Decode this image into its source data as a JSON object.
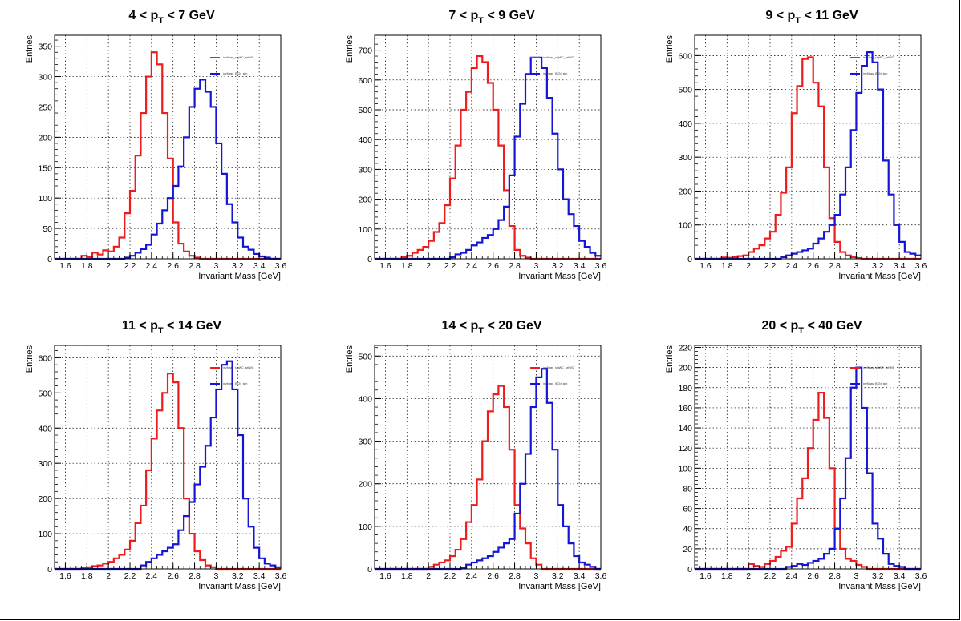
{
  "page": {
    "background": "#ffffff"
  },
  "colors": {
    "series_red": "#ee1c1c",
    "series_blue": "#1515d6",
    "grid": "#000000",
    "axis": "#000000"
  },
  "chart_data": [
    {
      "type": "histogram",
      "title_parts": {
        "left": "4 < p",
        "sub": "T",
        "right": " < 7 GeV"
      },
      "xlabel": "Invariant Mass [GeV]",
      "ylabel": "Entries",
      "xlim": [
        1.5,
        3.6
      ],
      "ylim": [
        0,
        368
      ],
      "xticks": [
        1.6,
        1.8,
        2,
        2.2,
        2.4,
        2.6,
        2.8,
        3,
        3.2,
        3.4,
        3.6
      ],
      "xtick_labels": [
        "1.6",
        "1.8",
        "2",
        "2.2",
        "2.4",
        "2.6",
        "2.8",
        "3",
        "3.2",
        "3.4",
        "3.6"
      ],
      "yticks": [
        0,
        50,
        100,
        150,
        200,
        250,
        300,
        350
      ],
      "ytick_labels": [
        "0",
        "50",
        "100",
        "150",
        "200",
        "250",
        "300",
        "350"
      ],
      "grid": true,
      "legend_position": "top-right",
      "series": [
        {
          "name": "invMass_sigWC_selWC",
          "color": "#ee1c1c",
          "values": [
            0,
            0,
            0,
            0,
            0,
            5,
            3,
            10,
            7,
            14,
            12,
            20,
            35,
            75,
            112,
            170,
            240,
            300,
            340,
            320,
            240,
            165,
            60,
            25,
            12,
            5,
            2,
            0,
            0,
            0,
            0,
            0,
            0,
            0,
            0,
            0,
            0,
            0,
            0,
            0,
            0,
            0
          ]
        },
        {
          "name": "invMass_BCN_sim",
          "color": "#1515d6",
          "values": [
            0,
            0,
            0,
            0,
            0,
            0,
            0,
            0,
            0,
            0,
            0,
            0,
            0,
            2,
            5,
            10,
            16,
            23,
            40,
            58,
            80,
            100,
            120,
            152,
            200,
            250,
            280,
            295,
            275,
            250,
            190,
            140,
            90,
            60,
            35,
            20,
            15,
            8,
            4,
            2,
            0,
            0
          ]
        }
      ]
    },
    {
      "type": "histogram",
      "title_parts": {
        "left": "7 < p",
        "sub": "T",
        "right": " < 9 GeV"
      },
      "xlabel": "Invariant Mass [GeV]",
      "ylabel": "Entries",
      "xlim": [
        1.5,
        3.6
      ],
      "ylim": [
        0,
        750
      ],
      "xticks": [
        1.6,
        1.8,
        2,
        2.2,
        2.4,
        2.6,
        2.8,
        3,
        3.2,
        3.4,
        3.6
      ],
      "xtick_labels": [
        "1.6",
        "1.8",
        "2",
        "2.2",
        "2.4",
        "2.6",
        "2.8",
        "3",
        "3.2",
        "3.4",
        "3.6"
      ],
      "yticks": [
        0,
        100,
        200,
        300,
        400,
        500,
        600,
        700
      ],
      "ytick_labels": [
        "0",
        "100",
        "200",
        "300",
        "400",
        "500",
        "600",
        "700"
      ],
      "grid": true,
      "legend_position": "top-right",
      "series": [
        {
          "name": "invMass_sigWC_selWC",
          "color": "#ee1c1c",
          "values": [
            0,
            0,
            0,
            0,
            0,
            5,
            10,
            20,
            30,
            40,
            60,
            90,
            120,
            180,
            270,
            380,
            500,
            560,
            640,
            680,
            660,
            590,
            500,
            380,
            230,
            110,
            30,
            10,
            4,
            0,
            0,
            0,
            0,
            0,
            0,
            0,
            0,
            0,
            0,
            0,
            0,
            0
          ]
        },
        {
          "name": "invMass_BCN_sim",
          "color": "#1515d6",
          "values": [
            0,
            0,
            0,
            0,
            0,
            0,
            0,
            0,
            0,
            0,
            0,
            0,
            0,
            0,
            5,
            15,
            20,
            30,
            45,
            55,
            70,
            80,
            100,
            130,
            175,
            280,
            410,
            520,
            620,
            675,
            675,
            640,
            540,
            420,
            300,
            200,
            150,
            110,
            60,
            40,
            20,
            10
          ]
        }
      ]
    },
    {
      "type": "histogram",
      "title_parts": {
        "left": "9 < p",
        "sub": "T",
        "right": " < 11 GeV"
      },
      "xlabel": "Invariant Mass [GeV]",
      "ylabel": "Entries",
      "xlim": [
        1.5,
        3.6
      ],
      "ylim": [
        0,
        660
      ],
      "xticks": [
        1.6,
        1.8,
        2,
        2.2,
        2.4,
        2.6,
        2.8,
        3,
        3.2,
        3.4,
        3.6
      ],
      "xtick_labels": [
        "1.6",
        "1.8",
        "2",
        "2.2",
        "2.4",
        "2.6",
        "2.8",
        "3",
        "3.2",
        "3.4",
        "3.6"
      ],
      "yticks": [
        0,
        100,
        200,
        300,
        400,
        500,
        600
      ],
      "ytick_labels": [
        "0",
        "100",
        "200",
        "300",
        "400",
        "500",
        "600"
      ],
      "grid": true,
      "legend_position": "top-right",
      "series": [
        {
          "name": "invMass_sigWC_selWC",
          "color": "#ee1c1c",
          "values": [
            0,
            0,
            0,
            0,
            0,
            4,
            3,
            5,
            8,
            10,
            20,
            30,
            40,
            60,
            80,
            130,
            195,
            270,
            430,
            510,
            590,
            595,
            520,
            450,
            270,
            120,
            50,
            20,
            10,
            5,
            2,
            0,
            0,
            0,
            0,
            0,
            0,
            0,
            0,
            0,
            0,
            0
          ]
        },
        {
          "name": "invMass_BCN_sim",
          "color": "#1515d6",
          "values": [
            0,
            0,
            0,
            0,
            0,
            0,
            0,
            0,
            0,
            0,
            0,
            0,
            0,
            0,
            0,
            0,
            5,
            10,
            15,
            20,
            25,
            30,
            45,
            60,
            80,
            100,
            130,
            190,
            270,
            380,
            490,
            570,
            610,
            580,
            500,
            290,
            190,
            100,
            50,
            20,
            15,
            10
          ]
        }
      ]
    },
    {
      "type": "histogram",
      "title_parts": {
        "left": "11 < p",
        "sub": "T",
        "right": " < 14 GeV"
      },
      "xlabel": "Invariant Mass [GeV]",
      "ylabel": "Entries",
      "xlim": [
        1.5,
        3.6
      ],
      "ylim": [
        0,
        635
      ],
      "xticks": [
        1.6,
        1.8,
        2,
        2.2,
        2.4,
        2.6,
        2.8,
        3,
        3.2,
        3.4,
        3.6
      ],
      "xtick_labels": [
        "1.6",
        "1.8",
        "2",
        "2.2",
        "2.4",
        "2.6",
        "2.8",
        "3",
        "3.2",
        "3.4",
        "3.6"
      ],
      "yticks": [
        0,
        100,
        200,
        300,
        400,
        500,
        600
      ],
      "ytick_labels": [
        "0",
        "100",
        "200",
        "300",
        "400",
        "500",
        "600"
      ],
      "grid": true,
      "legend_position": "top-right",
      "series": [
        {
          "name": "invMass_sigWC_selWC",
          "color": "#ee1c1c",
          "values": [
            0,
            0,
            0,
            0,
            0,
            2,
            5,
            8,
            10,
            15,
            20,
            30,
            40,
            55,
            80,
            130,
            180,
            280,
            370,
            450,
            500,
            555,
            530,
            400,
            200,
            100,
            50,
            25,
            10,
            5,
            0,
            0,
            0,
            0,
            0,
            0,
            0,
            0,
            0,
            0,
            0,
            0
          ]
        },
        {
          "name": "invMass_BCN_sim",
          "color": "#1515d6",
          "values": [
            0,
            0,
            0,
            0,
            0,
            0,
            0,
            0,
            0,
            0,
            0,
            0,
            0,
            0,
            0,
            0,
            10,
            20,
            30,
            40,
            50,
            60,
            70,
            110,
            150,
            190,
            240,
            290,
            350,
            430,
            510,
            580,
            590,
            510,
            380,
            200,
            120,
            60,
            30,
            15,
            10,
            5
          ]
        }
      ]
    },
    {
      "type": "histogram",
      "title_parts": {
        "left": "14 < p",
        "sub": "T",
        "right": " < 20 GeV"
      },
      "xlabel": "Invariant Mass [GeV]",
      "ylabel": "Entries",
      "xlim": [
        1.5,
        3.6
      ],
      "ylim": [
        0,
        525
      ],
      "xticks": [
        1.6,
        1.8,
        2,
        2.2,
        2.4,
        2.6,
        2.8,
        3,
        3.2,
        3.4,
        3.6
      ],
      "xtick_labels": [
        "1.6",
        "1.8",
        "2",
        "2.2",
        "2.4",
        "2.6",
        "2.8",
        "3",
        "3.2",
        "3.4",
        "3.6"
      ],
      "yticks": [
        0,
        100,
        200,
        300,
        400,
        500
      ],
      "ytick_labels": [
        "0",
        "100",
        "200",
        "300",
        "400",
        "500"
      ],
      "grid": true,
      "legend_position": "top-right",
      "series": [
        {
          "name": "invMass_sigWC_selWC",
          "color": "#ee1c1c",
          "values": [
            0,
            0,
            0,
            0,
            0,
            0,
            0,
            0,
            0,
            0,
            5,
            10,
            15,
            20,
            30,
            45,
            70,
            110,
            150,
            210,
            300,
            370,
            410,
            430,
            380,
            280,
            150,
            95,
            60,
            25,
            10,
            0,
            0,
            0,
            0,
            0,
            0,
            0,
            0,
            0,
            0,
            0
          ]
        },
        {
          "name": "invMass_BCN_sim",
          "color": "#1515d6",
          "values": [
            0,
            0,
            0,
            0,
            0,
            0,
            0,
            0,
            0,
            0,
            0,
            0,
            0,
            0,
            0,
            0,
            2,
            10,
            15,
            20,
            25,
            30,
            40,
            50,
            60,
            70,
            130,
            200,
            270,
            380,
            450,
            470,
            390,
            280,
            150,
            100,
            60,
            30,
            15,
            10,
            5,
            0
          ]
        }
      ]
    },
    {
      "type": "histogram",
      "title_parts": {
        "left": "20 < p",
        "sub": "T",
        "right": " < 40 GeV"
      },
      "xlabel": "Invariant Mass [GeV]",
      "ylabel": "Entries",
      "xlim": [
        1.5,
        3.6
      ],
      "ylim": [
        0,
        222
      ],
      "xticks": [
        1.6,
        1.8,
        2,
        2.2,
        2.4,
        2.6,
        2.8,
        3,
        3.2,
        3.4,
        3.6
      ],
      "xtick_labels": [
        "1.6",
        "1.8",
        "2",
        "2.2",
        "2.4",
        "2.6",
        "2.8",
        "3",
        "3.2",
        "3.4",
        "3.6"
      ],
      "yticks": [
        0,
        20,
        40,
        60,
        80,
        100,
        120,
        140,
        160,
        180,
        200,
        220
      ],
      "ytick_labels": [
        "0",
        "20",
        "40",
        "60",
        "80",
        "100",
        "120",
        "140",
        "160",
        "180",
        "200",
        "220"
      ],
      "grid": true,
      "legend_position": "top-right",
      "series": [
        {
          "name": "invMass_sigWC_selWC",
          "color": "#ee1c1c",
          "values": [
            0,
            0,
            0,
            0,
            0,
            0,
            0,
            0,
            0,
            0,
            5,
            3,
            2,
            5,
            8,
            12,
            18,
            22,
            45,
            70,
            90,
            120,
            148,
            175,
            150,
            100,
            40,
            20,
            10,
            8,
            4,
            2,
            0,
            0,
            0,
            0,
            0,
            0,
            0,
            0,
            0,
            0
          ]
        },
        {
          "name": "invMass_BCN_sim",
          "color": "#1515d6",
          "values": [
            0,
            0,
            0,
            0,
            0,
            0,
            0,
            0,
            0,
            0,
            0,
            0,
            0,
            0,
            0,
            0,
            0,
            2,
            3,
            5,
            4,
            6,
            8,
            10,
            15,
            20,
            40,
            70,
            110,
            180,
            200,
            160,
            95,
            45,
            30,
            15,
            5,
            3,
            2,
            0,
            0,
            0
          ]
        }
      ]
    }
  ]
}
